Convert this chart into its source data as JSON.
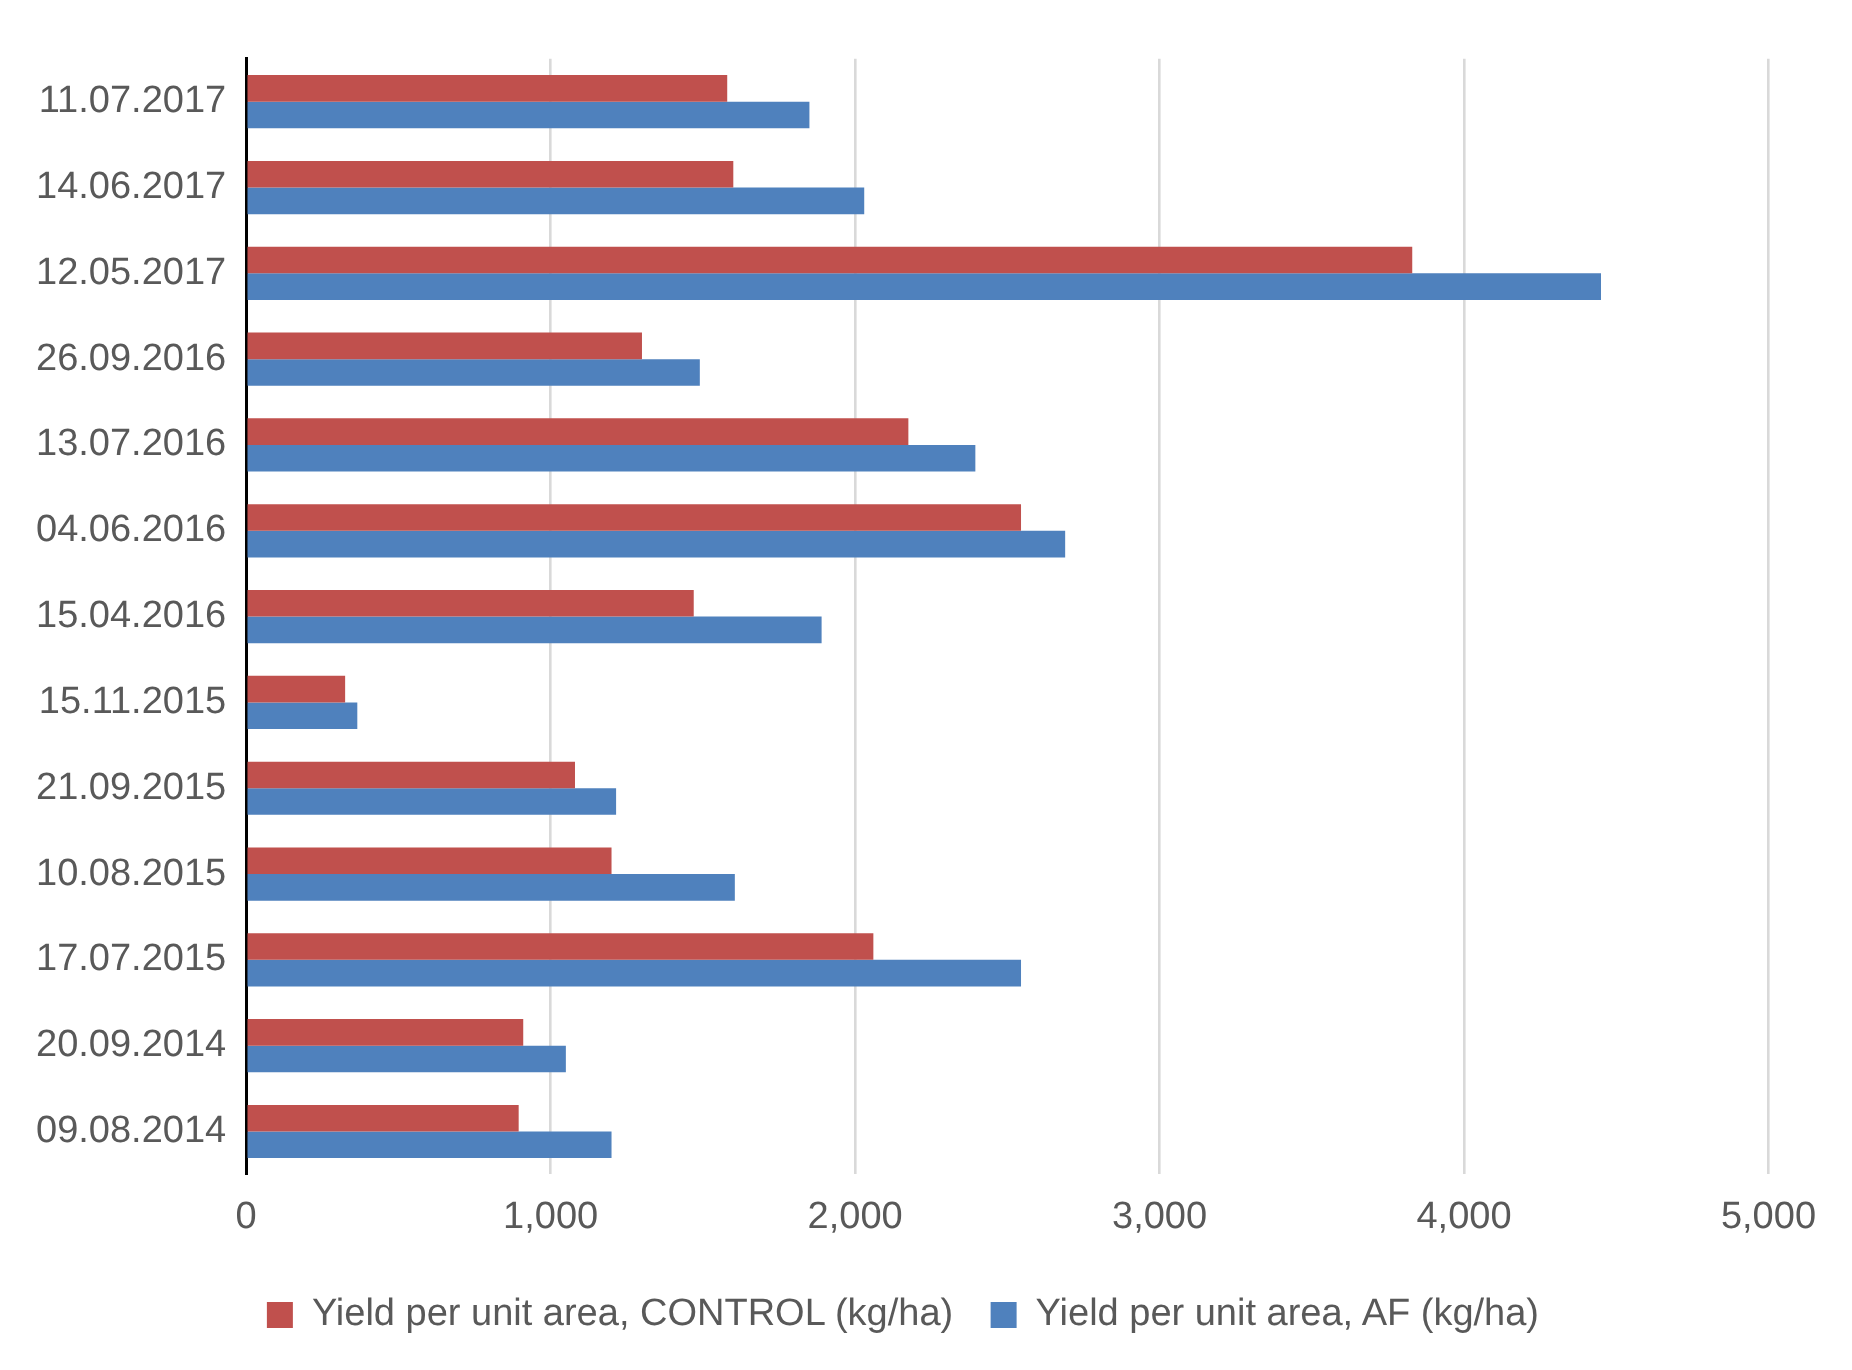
{
  "chart_data": {
    "type": "bar",
    "orientation": "horizontal",
    "categories": [
      "11.07.2017",
      "14.06.2017",
      "12.05.2017",
      "26.09.2016",
      "13.07.2016",
      "04.06.2016",
      "15.04.2016",
      "15.11.2015",
      "21.09.2015",
      "10.08.2015",
      "17.07.2015",
      "20.09.2014",
      "09.08.2014"
    ],
    "series": [
      {
        "name": "Yield per unit area, CONTROL (kg/ha)",
        "color": "#c0504d",
        "values": [
          1580,
          1600,
          3830,
          1300,
          2175,
          2545,
          1470,
          325,
          1080,
          1200,
          2060,
          910,
          895
        ]
      },
      {
        "name": "Yield per unit area, AF (kg/ha)",
        "color": "#4f81bd",
        "values": [
          1850,
          2030,
          4450,
          1490,
          2395,
          2690,
          1890,
          365,
          1215,
          1605,
          2545,
          1050,
          1200
        ]
      }
    ],
    "xlim": [
      0,
      5000
    ],
    "xticks": [
      {
        "value": 0,
        "label": "0"
      },
      {
        "value": 1000,
        "label": "1,000"
      },
      {
        "value": 2000,
        "label": "2,000"
      },
      {
        "value": 3000,
        "label": "3,000"
      },
      {
        "value": 4000,
        "label": "4,000"
      },
      {
        "value": 5000,
        "label": "5,000"
      }
    ],
    "grid": "x",
    "legend": "bottom"
  }
}
